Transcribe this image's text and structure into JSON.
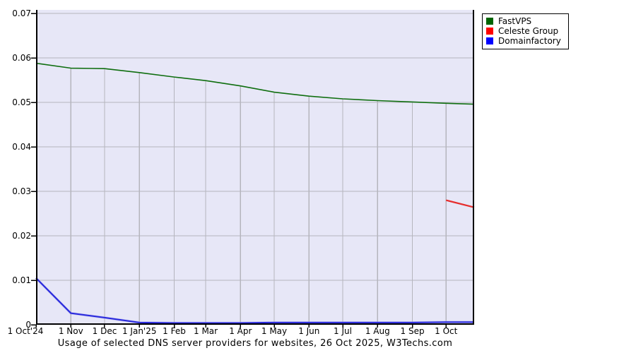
{
  "chart_data": {
    "type": "line",
    "title": "Usage of selected DNS server providers for websites, 26 Oct 2025, W3Techs.com",
    "x_start_date": "2024-10-01",
    "x_end_date": "2025-10-26",
    "ylim": [
      0,
      0.0708
    ],
    "grid": true,
    "legend_position": "outside-top-right",
    "plot_background": "#e7e7f7",
    "grid_color": "#b5b5bd",
    "axis_color": "#000000",
    "y_ticks": [
      {
        "label": "0",
        "value": 0
      },
      {
        "label": "0.01",
        "value": 0.01
      },
      {
        "label": "0.02",
        "value": 0.02
      },
      {
        "label": "0.03",
        "value": 0.03
      },
      {
        "label": "0.04",
        "value": 0.04
      },
      {
        "label": "0.05",
        "value": 0.05
      },
      {
        "label": "0.06",
        "value": 0.06
      },
      {
        "label": "0.07",
        "value": 0.07
      }
    ],
    "x_ticks": [
      {
        "label": "1 Oct'24",
        "date": "2024-10-01"
      },
      {
        "label": "1 Nov",
        "date": "2024-11-01"
      },
      {
        "label": "1 Dec",
        "date": "2024-12-01"
      },
      {
        "label": "1 Jan'25",
        "date": "2025-01-01"
      },
      {
        "label": "1 Feb",
        "date": "2025-02-01"
      },
      {
        "label": "1 Mar",
        "date": "2025-03-01"
      },
      {
        "label": "1 Apr",
        "date": "2025-04-01"
      },
      {
        "label": "1 May",
        "date": "2025-05-01"
      },
      {
        "label": "1 Jun",
        "date": "2025-06-01"
      },
      {
        "label": "1 Jul",
        "date": "2025-07-01"
      },
      {
        "label": "1 Aug",
        "date": "2025-08-01"
      },
      {
        "label": "1 Sep",
        "date": "2025-09-01"
      },
      {
        "label": "1 Oct",
        "date": "2025-10-01"
      }
    ],
    "series": [
      {
        "name": "FastVPS",
        "legend_color": "#006400",
        "line_color": "#0f6e0f",
        "points": [
          {
            "date": "2024-10-01",
            "value": 0.0588
          },
          {
            "date": "2024-11-01",
            "value": 0.0577
          },
          {
            "date": "2024-12-01",
            "value": 0.0576
          },
          {
            "date": "2025-01-01",
            "value": 0.0567
          },
          {
            "date": "2025-02-01",
            "value": 0.0557
          },
          {
            "date": "2025-03-01",
            "value": 0.0549
          },
          {
            "date": "2025-04-01",
            "value": 0.0537
          },
          {
            "date": "2025-05-01",
            "value": 0.0523
          },
          {
            "date": "2025-06-01",
            "value": 0.0514
          },
          {
            "date": "2025-07-01",
            "value": 0.0508
          },
          {
            "date": "2025-08-01",
            "value": 0.0504
          },
          {
            "date": "2025-09-01",
            "value": 0.0501
          },
          {
            "date": "2025-10-01",
            "value": 0.0498
          },
          {
            "date": "2025-10-26",
            "value": 0.0496
          }
        ]
      },
      {
        "name": "Celeste Group",
        "legend_color": "#ff0000",
        "line_color": "#e62e2e",
        "points": [
          {
            "date": "2025-10-01",
            "value": 0.028
          },
          {
            "date": "2025-10-26",
            "value": 0.0264
          }
        ]
      },
      {
        "name": "Domainfactory",
        "legend_color": "#0000ff",
        "line_color": "#2828dc",
        "points": [
          {
            "date": "2024-10-01",
            "value": 0.0105
          },
          {
            "date": "2024-11-01",
            "value": 0.0026
          },
          {
            "date": "2024-12-01",
            "value": 0.0016
          },
          {
            "date": "2025-01-01",
            "value": 0.0005
          },
          {
            "date": "2025-02-01",
            "value": 0.0004
          },
          {
            "date": "2025-03-01",
            "value": 0.0004
          },
          {
            "date": "2025-04-01",
            "value": 0.0004
          },
          {
            "date": "2025-05-01",
            "value": 0.0005
          },
          {
            "date": "2025-06-01",
            "value": 0.0005
          },
          {
            "date": "2025-07-01",
            "value": 0.0005
          },
          {
            "date": "2025-08-01",
            "value": 0.0005
          },
          {
            "date": "2025-09-01",
            "value": 0.0005
          },
          {
            "date": "2025-10-01",
            "value": 0.0006
          },
          {
            "date": "2025-10-26",
            "value": 0.0006
          }
        ]
      }
    ]
  }
}
